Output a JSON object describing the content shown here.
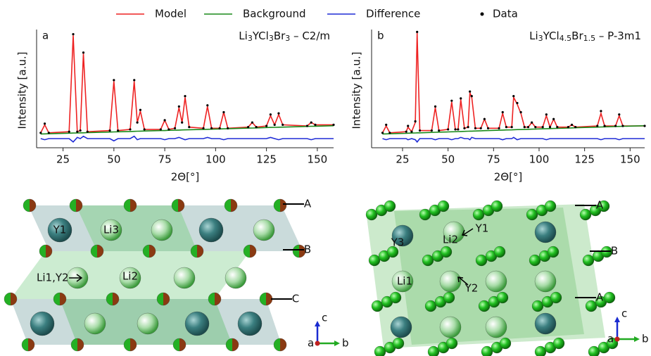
{
  "chart_data": [
    {
      "type": "line",
      "panel": "a",
      "formula": [
        "Li",
        "3",
        "YCl",
        "3",
        "Br",
        "3",
        " – C2/m"
      ],
      "x_label": "2Θ[°]",
      "y_label": "Intensity [a.u.]",
      "x": [
        14,
        16,
        18,
        28,
        30,
        32,
        33.5,
        35,
        37,
        48,
        50,
        52,
        58,
        60,
        61.5,
        63,
        65,
        73,
        75,
        77,
        80,
        82,
        83.5,
        85,
        87,
        94,
        96,
        98,
        102,
        104,
        106,
        116,
        118,
        120,
        125,
        127,
        129,
        131,
        133,
        145,
        147,
        149,
        158
      ],
      "series": [
        {
          "name": "Model",
          "color": "#ee2222",
          "values": [
            13,
            20,
            13,
            14,
            98,
            14,
            15,
            82,
            14,
            15,
            58,
            15,
            16,
            58,
            22,
            32,
            16,
            16,
            24,
            16,
            17,
            35,
            22,
            44,
            18,
            17,
            36,
            17,
            17,
            31,
            17,
            18,
            22,
            18,
            19,
            28,
            20,
            29,
            20,
            19,
            22,
            20,
            20
          ]
        },
        {
          "name": "Background",
          "color": "#1a8a1a",
          "values": [
            12,
            12.1,
            12.2,
            12.7,
            12.8,
            12.9,
            13,
            13,
            13.2,
            13.7,
            13.8,
            13.9,
            14.2,
            14.3,
            14.4,
            14.5,
            14.6,
            15,
            15,
            15.2,
            15.3,
            15.4,
            15.5,
            15.6,
            15.7,
            16,
            16.1,
            16.2,
            16.4,
            16.5,
            16.6,
            17.1,
            17.2,
            17.3,
            17.6,
            17.7,
            17.8,
            17.9,
            18,
            18.6,
            18.7,
            18.8,
            19.2
          ]
        },
        {
          "name": "Difference",
          "color": "#1f2bd6",
          "values": [
            8,
            7,
            8,
            8,
            5,
            9,
            8,
            10,
            8,
            8,
            6,
            8,
            8,
            10,
            7,
            8,
            8,
            8,
            7,
            8,
            8,
            9,
            8,
            7,
            8,
            8,
            9,
            8,
            8,
            7,
            8,
            8,
            8,
            8,
            8,
            9,
            8,
            7,
            8,
            8,
            7,
            8,
            8
          ]
        },
        {
          "name": "Data",
          "color": "#000000",
          "values": [
            13,
            21,
            13,
            14,
            99,
            14,
            15,
            83,
            14,
            15,
            59,
            15,
            16,
            59,
            22,
            33,
            16,
            16,
            24,
            16,
            17,
            36,
            22,
            45,
            18,
            17,
            37,
            17,
            17,
            31,
            17,
            18,
            22,
            18,
            19,
            29,
            20,
            30,
            20,
            19,
            22,
            20,
            20
          ]
        }
      ],
      "xlim": [
        12,
        158
      ],
      "ylim": [
        0,
        100
      ],
      "xticks": [
        25,
        50,
        75,
        100,
        125,
        150
      ]
    },
    {
      "type": "line",
      "panel": "b",
      "formula": [
        "Li",
        "3",
        "YCl",
        "4.5",
        "Br",
        "1.5",
        " – P-3m1"
      ],
      "x_label": "2Θ[°]",
      "y_label": "Intensity [a.u.]",
      "x": [
        14,
        16,
        18,
        27,
        28,
        30,
        32,
        33,
        34.5,
        41,
        43,
        45,
        50,
        52,
        54,
        55.5,
        57,
        59,
        61,
        62,
        63,
        65,
        68,
        70,
        72,
        78,
        80,
        82,
        85,
        86,
        88,
        90,
        92,
        94,
        96,
        98,
        102,
        104,
        106,
        108,
        110,
        116,
        118,
        120,
        132,
        134,
        136,
        142,
        144,
        146,
        158
      ],
      "series": [
        {
          "color": "#ee2222",
          "values": [
            13,
            19,
            13,
            14,
            18,
            14,
            22,
            100,
            15,
            15,
            35,
            15,
            16,
            40,
            16,
            16,
            42,
            17,
            18,
            48,
            44,
            17,
            17,
            25,
            17,
            17,
            30,
            18,
            18,
            44,
            38,
            30,
            18,
            18,
            22,
            18,
            18,
            28,
            18,
            25,
            18,
            18,
            20,
            18,
            19,
            30,
            19,
            19,
            28,
            19,
            19
          ]
        },
        {
          "color": "#1a8a1a",
          "values": [
            12,
            12.1,
            12.2,
            12.6,
            12.7,
            12.8,
            12.9,
            13,
            13,
            13.4,
            13.5,
            13.6,
            13.8,
            13.9,
            14,
            14.1,
            14.2,
            14.3,
            14.4,
            14.5,
            14.5,
            14.6,
            14.8,
            14.9,
            15,
            15.3,
            15.4,
            15.5,
            15.6,
            15.7,
            15.8,
            15.9,
            16,
            16.1,
            16.2,
            16.3,
            16.5,
            16.6,
            16.7,
            16.8,
            16.9,
            17.2,
            17.3,
            17.4,
            18,
            18.1,
            18.2,
            18.5,
            18.6,
            18.7,
            19.2
          ]
        },
        {
          "color": "#1f2bd6",
          "values": [
            8,
            7,
            8,
            8,
            7,
            8,
            7,
            5,
            8,
            8,
            7,
            8,
            8,
            7,
            8,
            8,
            9,
            8,
            8,
            7,
            9,
            8,
            8,
            8,
            8,
            8,
            7,
            8,
            8,
            9,
            7,
            8,
            8,
            8,
            8,
            8,
            8,
            7,
            8,
            8,
            8,
            8,
            8,
            8,
            8,
            7,
            8,
            8,
            7,
            8,
            8
          ]
        },
        {
          "color": "#000000",
          "values": [
            13,
            20,
            13,
            14,
            19,
            14,
            23,
            101,
            15,
            15,
            36,
            15,
            16,
            41,
            16,
            16,
            43,
            17,
            18,
            49,
            45,
            17,
            17,
            25,
            17,
            17,
            31,
            18,
            18,
            45,
            39,
            31,
            18,
            18,
            22,
            18,
            18,
            29,
            18,
            25,
            18,
            18,
            20,
            18,
            19,
            32,
            19,
            19,
            29,
            19,
            19
          ]
        }
      ],
      "xlim": [
        8,
        158
      ],
      "ylim": [
        0,
        100
      ],
      "xticks": [
        25,
        50,
        75,
        100,
        125,
        150
      ]
    }
  ],
  "structures": [
    {
      "labels": [
        "A",
        "B",
        "C",
        "Y1",
        "Li3",
        "Li1,Y2",
        "Li2"
      ],
      "axes": [
        "c",
        "a",
        "b"
      ]
    },
    {
      "labels": [
        "A",
        "B",
        "A",
        "Y1",
        "Y3",
        "Li2",
        "Li1",
        "Y2"
      ],
      "axes": [
        "c",
        "a",
        "b"
      ]
    }
  ]
}
